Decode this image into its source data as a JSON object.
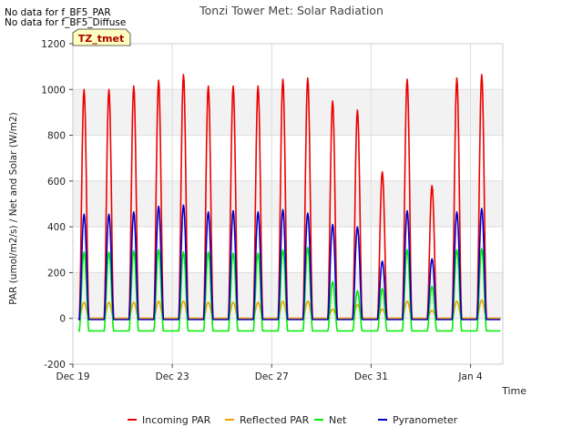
{
  "chart_data": {
    "type": "line",
    "title": "Tonzi Tower Met: Solar Radiation",
    "xlabel": "Time",
    "ylabel": "PAR (umol/m2/s) / Net and Solar (W/m2)",
    "ylim": [
      -200,
      1200
    ],
    "yticks": [
      -200,
      0,
      200,
      400,
      600,
      800,
      1000,
      1200
    ],
    "xlim": [
      0,
      17.3
    ],
    "xticks": [
      {
        "label": "Dec 19",
        "day": 0
      },
      {
        "label": "Dec 23",
        "day": 4
      },
      {
        "label": "Dec 27",
        "day": 8
      },
      {
        "label": "Dec 31",
        "day": 12
      },
      {
        "label": "Jan 4",
        "day": 16
      }
    ],
    "grid": true,
    "legend_position": "bottom",
    "day_offset": 0.45,
    "series": [
      {
        "name": "Incoming PAR",
        "color": "#ee0000",
        "night": 0,
        "peaks": [
          1000,
          1000,
          1015,
          1040,
          1065,
          1015,
          1015,
          1015,
          1045,
          1050,
          950,
          910,
          640,
          1045,
          580,
          1050,
          1065
        ]
      },
      {
        "name": "Reflected PAR",
        "color": "#f0a000",
        "night": 0,
        "peaks": [
          70,
          70,
          70,
          75,
          75,
          70,
          70,
          70,
          75,
          75,
          40,
          60,
          40,
          75,
          35,
          75,
          80
        ]
      },
      {
        "name": "Net",
        "color": "#00ee00",
        "night": -55,
        "peaks": [
          290,
          290,
          295,
          300,
          290,
          290,
          285,
          285,
          300,
          310,
          160,
          120,
          130,
          300,
          140,
          300,
          305
        ]
      },
      {
        "name": "Pyranometer",
        "color": "#0000cc",
        "night": -5,
        "peaks": [
          455,
          455,
          465,
          490,
          495,
          465,
          470,
          465,
          475,
          460,
          410,
          400,
          250,
          470,
          260,
          465,
          480
        ]
      }
    ]
  },
  "annotations": {
    "no_data_1": "No data for f_BF5_PAR",
    "no_data_2": "No data for f_BF5_Diffuse",
    "site_badge": "TZ_tmet"
  }
}
